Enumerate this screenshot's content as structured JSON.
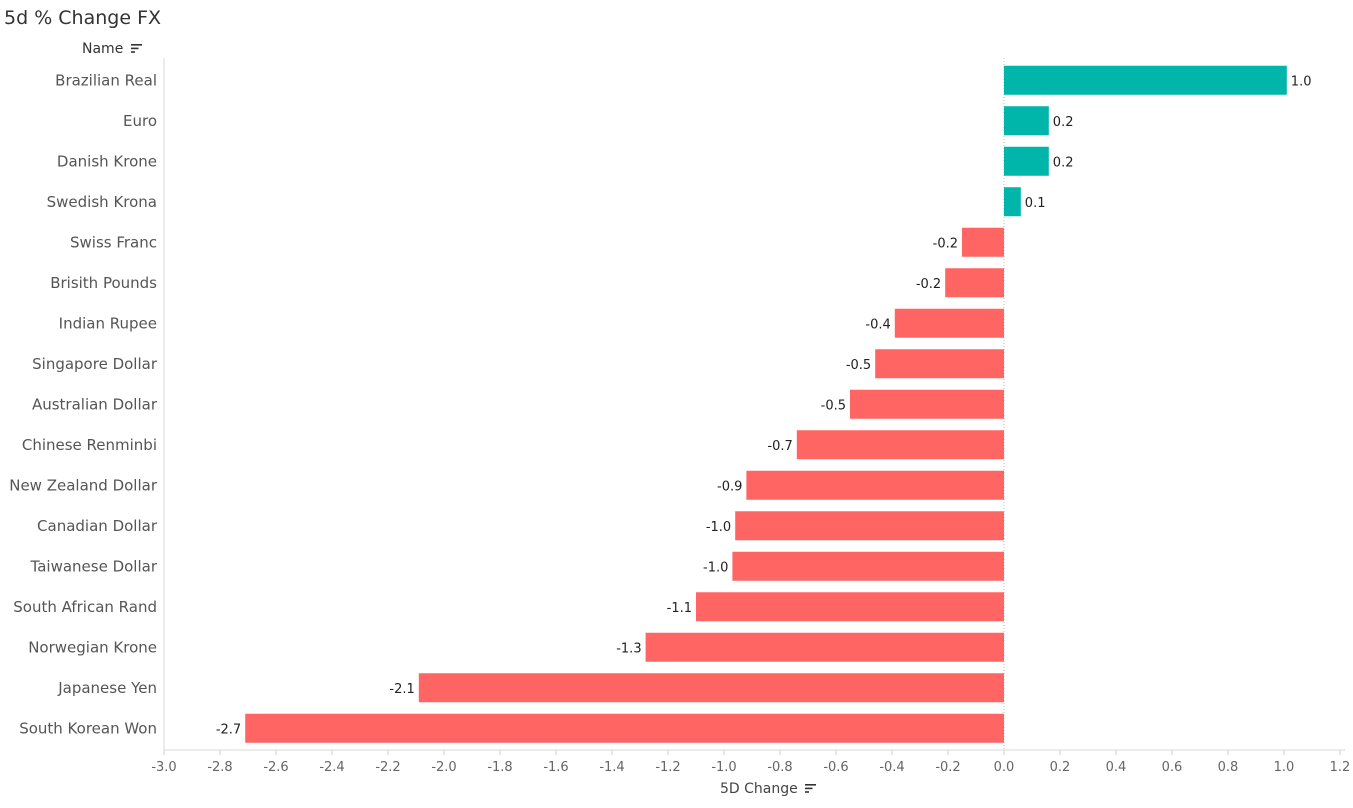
{
  "title": "5d % Change FX",
  "name_header": "Name",
  "icons": {
    "sort_name": "sort-icon",
    "sort_xaxis": "sort-icon"
  },
  "colors": {
    "positive": "#00b5a9",
    "negative": "#ff6663"
  },
  "chart_data": {
    "type": "bar",
    "orientation": "horizontal",
    "categories": [
      "Brazilian Real",
      "Euro",
      "Danish Krone",
      "Swedish Krona",
      "Swiss Franc",
      "Brisith Pounds",
      "Indian Rupee",
      "Singapore Dollar",
      "Australian Dollar",
      "Chinese Renminbi",
      "New Zealand Dollar",
      "Canadian Dollar",
      "Taiwanese Dollar",
      "South African Rand",
      "Norwegian Krone",
      "Japanese Yen",
      "South Korean Won"
    ],
    "values": [
      1.01,
      0.16,
      0.16,
      0.06,
      -0.15,
      -0.21,
      -0.39,
      -0.46,
      -0.55,
      -0.74,
      -0.92,
      -0.96,
      -0.97,
      -1.1,
      -1.28,
      -2.09,
      -2.71
    ],
    "value_labels": [
      "1.0",
      "0.2",
      "0.2",
      "0.1",
      "-0.2",
      "-0.2",
      "-0.4",
      "-0.5",
      "-0.5",
      "-0.7",
      "-0.9",
      "-1.0",
      "-1.0",
      "-1.1",
      "-1.3",
      "-2.1",
      "-2.7"
    ],
    "xlabel": "5D Change",
    "ylabel": "Name",
    "xlim": [
      -3.0,
      1.2
    ],
    "xticks": [
      -3.0,
      -2.8,
      -2.6,
      -2.4,
      -2.2,
      -2.0,
      -1.8,
      -1.6,
      -1.4,
      -1.2,
      -1.0,
      -0.8,
      -0.6,
      -0.4,
      -0.2,
      0.0,
      0.2,
      0.4,
      0.6,
      0.8,
      1.0,
      1.2
    ],
    "xtick_labels": [
      "-3.0",
      "-2.8",
      "-2.6",
      "-2.4",
      "-2.2",
      "-2.0",
      "-1.8",
      "-1.6",
      "-1.4",
      "-1.2",
      "-1.0",
      "-0.8",
      "-0.6",
      "-0.4",
      "-0.2",
      "0.0",
      "0.2",
      "0.4",
      "0.6",
      "0.8",
      "1.0",
      "1.2"
    ],
    "grid": false
  }
}
